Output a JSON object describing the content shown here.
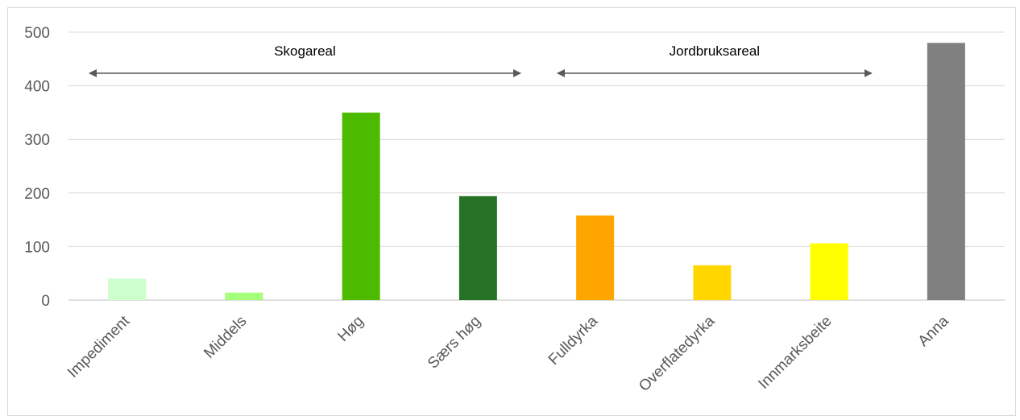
{
  "chart_data": {
    "type": "bar",
    "title": "",
    "xlabel": "",
    "ylabel": "",
    "categories": [
      "Impediment",
      "Middels",
      "Høg",
      "Særs høg",
      "Fulldyrka",
      "Overflatedyrka",
      "Innmarksbeite",
      "Anna"
    ],
    "values": [
      40,
      14,
      350,
      194,
      158,
      65,
      106,
      480
    ],
    "colors": [
      "#ccffcc",
      "#a6ff79",
      "#4cbb00",
      "#267326",
      "#ffa500",
      "#ffd600",
      "#ffff00",
      "#808080"
    ],
    "ylim": [
      0,
      500
    ],
    "yticks": [
      0,
      100,
      200,
      300,
      400,
      500
    ],
    "grid": true,
    "legend": "none",
    "annotations": [
      {
        "text": "Skogareal",
        "from": "Impediment",
        "to": "Særs høg"
      },
      {
        "text": "Jordbruksareal",
        "from": "Fulldyrka",
        "to": "Innmarksbeite"
      }
    ]
  }
}
